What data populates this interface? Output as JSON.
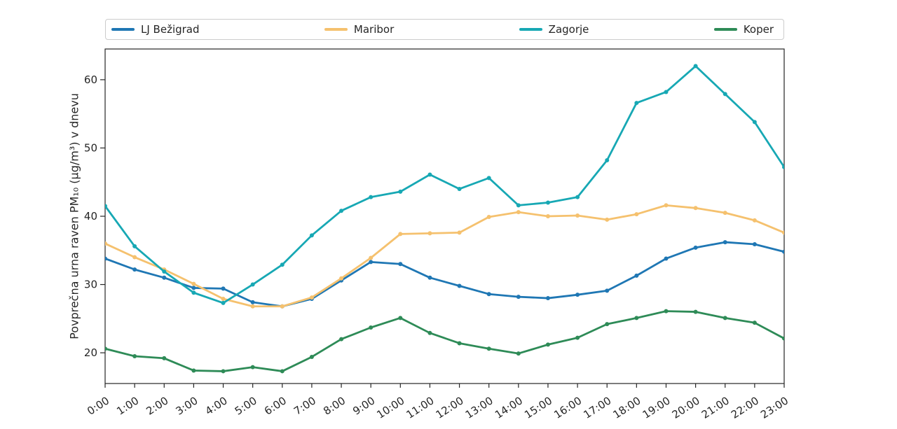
{
  "legend": {
    "items": [
      {
        "label": "LJ Bežigrad",
        "color": "#1f77b4"
      },
      {
        "label": "Maribor",
        "color": "#f5c16e"
      },
      {
        "label": "Zagorje",
        "color": "#17a8b4"
      },
      {
        "label": "Koper",
        "color": "#2e8b57"
      }
    ]
  },
  "chart_data": {
    "type": "line",
    "title": "",
    "xlabel": "",
    "ylabel": "Povprečna urna raven PM₁₀ (μg/m³) v dnevu",
    "x_labels": [
      "0:00",
      "1:00",
      "2:00",
      "3:00",
      "4:00",
      "5:00",
      "6:00",
      "7:00",
      "8:00",
      "9:00",
      "10:00",
      "11:00",
      "12:00",
      "13:00",
      "14:00",
      "15:00",
      "16:00",
      "17:00",
      "18:00",
      "19:00",
      "20:00",
      "21:00",
      "22:00",
      "23:00"
    ],
    "yticks": [
      20,
      30,
      40,
      50,
      60
    ],
    "ytick_labels": [
      "20",
      "30",
      "40",
      "50",
      "60"
    ],
    "ylim": [
      15.5,
      64.5
    ],
    "grid": false,
    "legend_position": "top",
    "marker": "dot",
    "series": [
      {
        "name": "LJ Bežigrad",
        "color": "#1f77b4",
        "values": [
          33.8,
          32.2,
          31.0,
          29.5,
          29.4,
          27.4,
          26.8,
          27.9,
          30.6,
          33.3,
          33.0,
          31.0,
          29.8,
          28.6,
          28.2,
          28.0,
          28.5,
          29.1,
          31.3,
          33.8,
          35.4,
          36.2,
          35.9,
          34.8
        ]
      },
      {
        "name": "Maribor",
        "color": "#f5c16e",
        "values": [
          36.0,
          34.0,
          32.2,
          30.1,
          27.9,
          26.8,
          26.8,
          28.1,
          30.9,
          33.9,
          37.4,
          37.5,
          37.6,
          39.9,
          40.6,
          40.0,
          40.1,
          39.5,
          40.3,
          41.6,
          41.2,
          40.5,
          39.4,
          37.6
        ]
      },
      {
        "name": "Zagorje",
        "color": "#17a8b4",
        "values": [
          41.5,
          35.6,
          31.9,
          28.8,
          27.3,
          30.0,
          32.9,
          37.2,
          40.8,
          42.8,
          43.6,
          46.1,
          44.0,
          45.6,
          41.6,
          42.0,
          42.8,
          48.2,
          56.6,
          58.2,
          62.0,
          57.9,
          53.8,
          47.2
        ]
      },
      {
        "name": "Koper",
        "color": "#2e8b57",
        "values": [
          20.6,
          19.5,
          19.2,
          17.4,
          17.3,
          17.9,
          17.3,
          19.4,
          22.0,
          23.7,
          25.1,
          22.9,
          21.4,
          20.6,
          19.9,
          21.2,
          22.2,
          24.2,
          25.1,
          26.1,
          26.0,
          25.1,
          24.4,
          22.1
        ]
      }
    ]
  }
}
